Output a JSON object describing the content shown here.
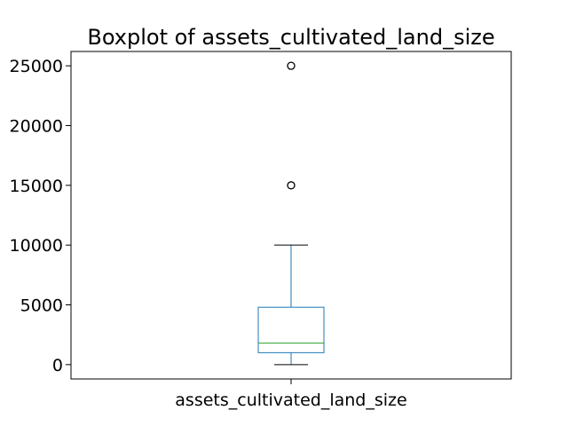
{
  "chart_data": {
    "type": "box",
    "title": "Boxplot of assets_cultivated_land_size",
    "categories": [
      "assets_cultivated_land_size"
    ],
    "xlabel": "",
    "ylabel": "",
    "ylim": [
      -1200,
      26200
    ],
    "yticks": [
      0,
      5000,
      10000,
      15000,
      20000,
      25000
    ],
    "ytick_labels": [
      "0",
      "5000",
      "10000",
      "15000",
      "20000",
      "25000"
    ],
    "series": [
      {
        "whisker_low": 0,
        "q1": 1000,
        "median": 1800,
        "q3": 4800,
        "whisker_high": 10000,
        "outliers": [
          15000,
          25000
        ]
      }
    ],
    "grid": false,
    "colors": {
      "box": "#1f77b4",
      "median": "#2ca02c",
      "whisker": "#1f77b4",
      "cap": "#000000",
      "outlier": "#000000",
      "axes": "#000000"
    }
  }
}
